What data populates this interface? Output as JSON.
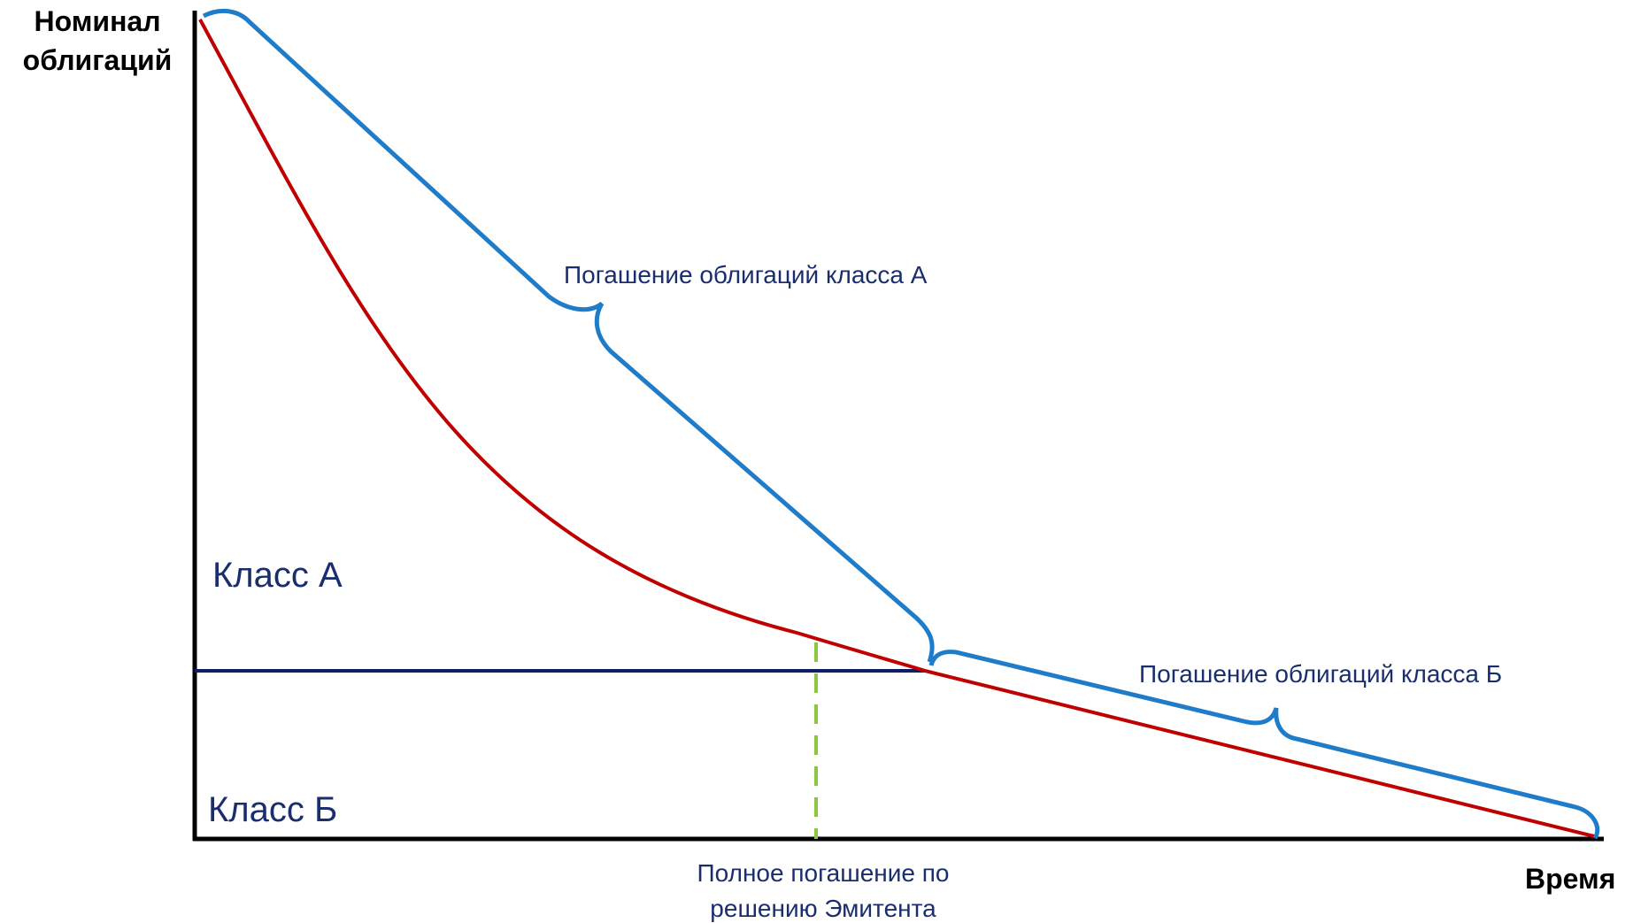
{
  "axes": {
    "y_label_line1": "Номинал",
    "y_label_line2": "облигаций",
    "x_label": "Время"
  },
  "regions": {
    "class_a": "Класс А",
    "class_b": "Класс Б"
  },
  "braces": {
    "class_a_repayment": "Погашение облигаций класса А",
    "class_b_repayment": "Погашение облигаций класса Б"
  },
  "marker": {
    "line1": "Полное погашение по",
    "line2": "решению Эмитента"
  },
  "colors": {
    "axis": "#000000",
    "red_curve": "#C00000",
    "brace": "#1F7CC8",
    "class_line": "#0F1E64",
    "marker_dash": "#8DC63F",
    "text_blue": "#1A2E6E"
  }
}
